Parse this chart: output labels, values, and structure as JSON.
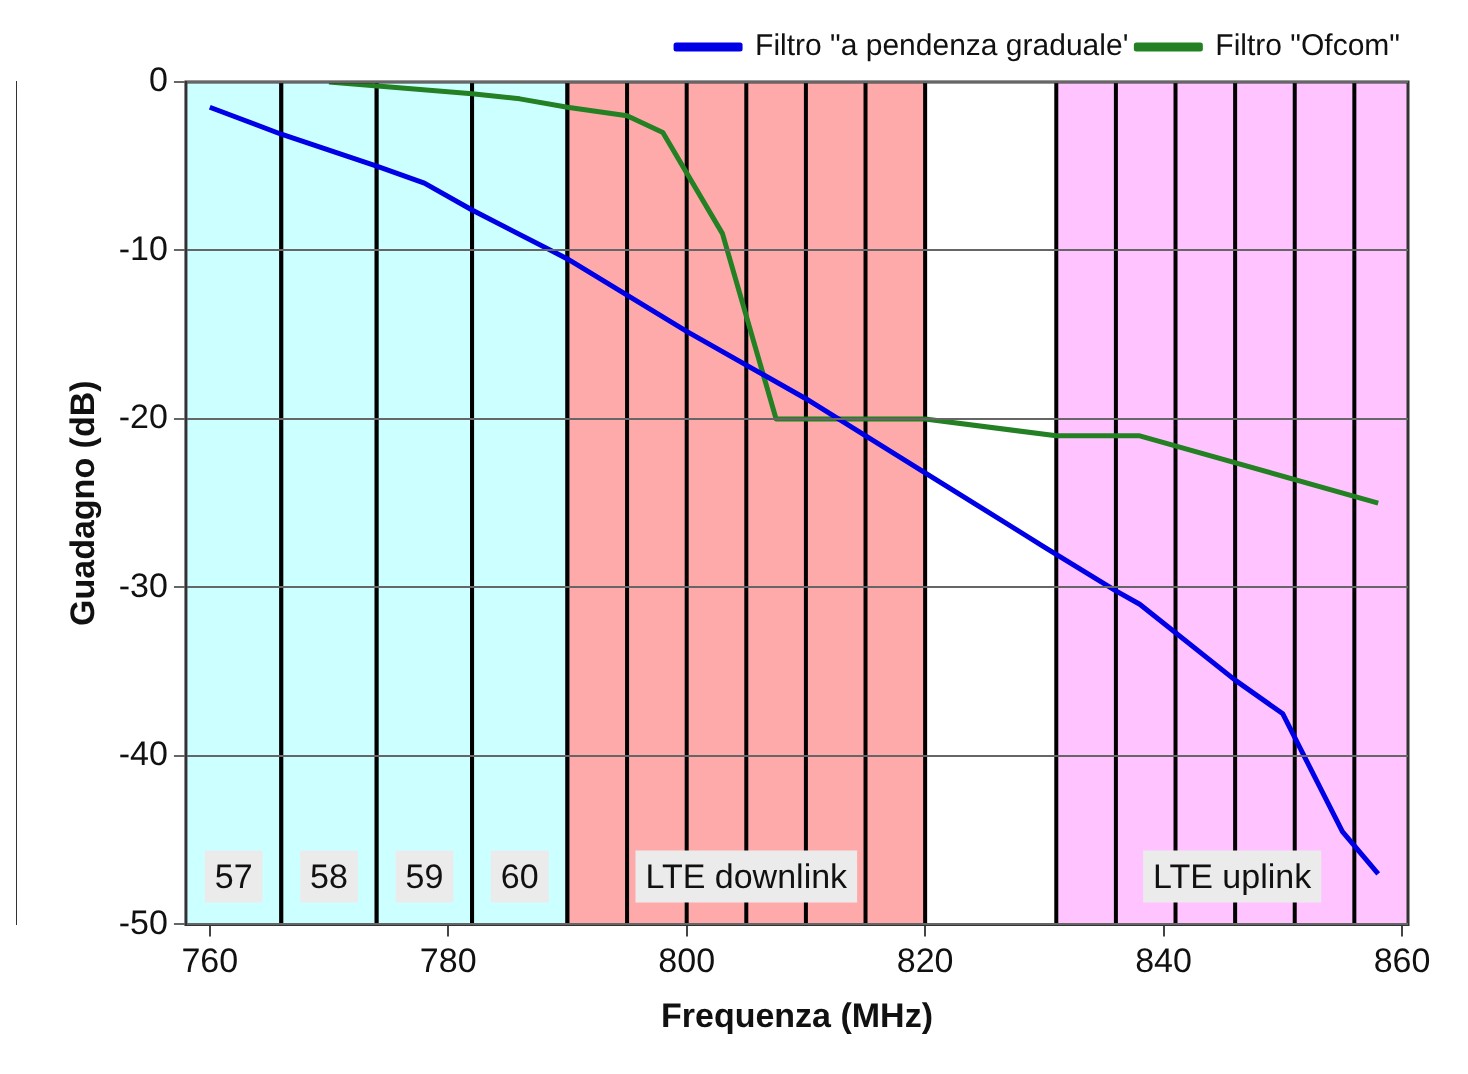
{
  "chart_data": {
    "type": "line",
    "xlabel": "Frequenza (MHz)",
    "ylabel": "Guadagno (dB)",
    "xlim": [
      758,
      860.5
    ],
    "xticks": [
      760,
      780,
      800,
      820,
      840,
      860
    ],
    "ylim": [
      -50,
      0
    ],
    "yticks": [
      -50,
      -40,
      -30,
      -20,
      -10,
      0
    ],
    "grid": true,
    "legend": "top right",
    "line_style": "solid",
    "marker": "none",
    "series": [
      {
        "name": "Filtro \"a pendenza graduale'",
        "color": "#0000e6",
        "x": [
          760,
          766,
          774,
          778,
          782,
          790,
          800,
          810,
          820,
          830,
          836,
          838,
          846,
          850,
          855,
          858
        ],
        "values": [
          -1.5,
          -3.1,
          -5,
          -6,
          -7.6,
          -10.5,
          -14.8,
          -18.8,
          -23.2,
          -27.6,
          -30.2,
          -31,
          -35.5,
          -37.5,
          -44.5,
          -47
        ]
      },
      {
        "name": "Filtro \"Ofcom\"",
        "color": "#238023",
        "x": [
          770,
          782,
          786,
          790,
          795,
          798,
          803,
          807.5,
          820,
          831,
          838,
          858
        ],
        "values": [
          0,
          -0.7,
          -1,
          -1.5,
          -2,
          -3,
          -9,
          -20,
          -20,
          -21,
          -21,
          -25
        ]
      }
    ],
    "bands": [
      {
        "axis": "x",
        "from": 758,
        "to": 766,
        "label": "57",
        "color": "#ccffff"
      },
      {
        "axis": "x",
        "from": 766,
        "to": 774,
        "label": "58",
        "color": "#ccffff"
      },
      {
        "axis": "x",
        "from": 774,
        "to": 782,
        "label": "59",
        "color": "#ccffff"
      },
      {
        "axis": "x",
        "from": 782,
        "to": 790,
        "label": "60",
        "color": "#ccffff"
      },
      {
        "axis": "x",
        "from": 790,
        "to": 820,
        "label": "LTE downlink",
        "color": "#ffaaaa"
      },
      {
        "axis": "x",
        "from": 831,
        "to": 860.5,
        "label": "LTE uplink",
        "color": "#ffc4ff"
      }
    ],
    "ref_lines": [
      {
        "axis": "x",
        "value": 795,
        "color": "#000000"
      },
      {
        "axis": "x",
        "value": 800,
        "color": "#000000"
      },
      {
        "axis": "x",
        "value": 805,
        "color": "#000000"
      },
      {
        "axis": "x",
        "value": 810,
        "color": "#000000"
      },
      {
        "axis": "x",
        "value": 815,
        "color": "#000000"
      },
      {
        "axis": "x",
        "value": 836,
        "color": "#000000"
      },
      {
        "axis": "x",
        "value": 841,
        "color": "#000000"
      },
      {
        "axis": "x",
        "value": 846,
        "color": "#000000"
      },
      {
        "axis": "x",
        "value": 851,
        "color": "#000000"
      },
      {
        "axis": "x",
        "value": 856,
        "color": "#000000"
      }
    ]
  }
}
